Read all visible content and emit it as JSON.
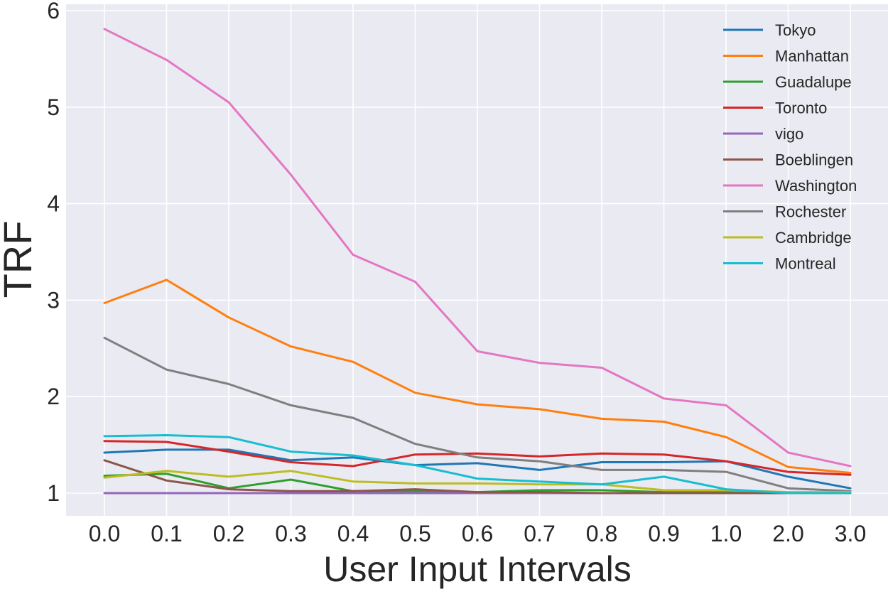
{
  "chart_data": {
    "type": "line",
    "title": "",
    "xlabel": "User Input Intervals",
    "ylabel": "TRF",
    "categories": [
      "0.0",
      "0.1",
      "0.2",
      "0.3",
      "0.4",
      "0.5",
      "0.6",
      "0.7",
      "0.8",
      "0.9",
      "1.0",
      "2.0",
      "3.0"
    ],
    "yticks": [
      "1",
      "2",
      "3",
      "4",
      "5",
      "6"
    ],
    "ylim": [
      0.75,
      6.05
    ],
    "grid": true,
    "legend_position": "top-right",
    "series": [
      {
        "name": "Tokyo",
        "color": "#1f77b4",
        "values": [
          1.42,
          1.45,
          1.45,
          1.34,
          1.37,
          1.29,
          1.31,
          1.24,
          1.32,
          1.32,
          1.33,
          1.17,
          1.05
        ]
      },
      {
        "name": "Manhattan",
        "color": "#ff7f0e",
        "values": [
          2.97,
          3.21,
          2.82,
          2.52,
          2.36,
          2.04,
          1.92,
          1.87,
          1.77,
          1.74,
          1.58,
          1.27,
          1.21
        ]
      },
      {
        "name": "Guadalupe",
        "color": "#2ca02c",
        "values": [
          1.18,
          1.2,
          1.05,
          1.14,
          1.02,
          1.02,
          1.01,
          1.03,
          1.03,
          1.01,
          1.01,
          1.0,
          1.0
        ]
      },
      {
        "name": "Toronto",
        "color": "#d62728",
        "values": [
          1.54,
          1.53,
          1.43,
          1.32,
          1.28,
          1.4,
          1.41,
          1.38,
          1.41,
          1.4,
          1.33,
          1.22,
          1.19
        ]
      },
      {
        "name": "vigo",
        "color": "#9467bd",
        "values": [
          1.0,
          1.0,
          1.0,
          1.0,
          1.0,
          1.0,
          1.0,
          1.0,
          1.0,
          1.0,
          1.0,
          1.0,
          1.0
        ]
      },
      {
        "name": "Boeblingen",
        "color": "#8c564b",
        "values": [
          1.34,
          1.13,
          1.04,
          1.02,
          1.02,
          1.04,
          1.01,
          1.01,
          1.0,
          1.0,
          1.0,
          1.0,
          1.0
        ]
      },
      {
        "name": "Washington",
        "color": "#e377c2",
        "values": [
          5.81,
          5.49,
          5.05,
          4.3,
          3.47,
          3.19,
          2.47,
          2.35,
          2.3,
          1.98,
          1.91,
          1.42,
          1.28
        ]
      },
      {
        "name": "Rochester",
        "color": "#7f7f7f",
        "values": [
          2.61,
          2.28,
          2.13,
          1.91,
          1.78,
          1.51,
          1.37,
          1.33,
          1.24,
          1.24,
          1.22,
          1.05,
          1.02
        ]
      },
      {
        "name": "Cambridge",
        "color": "#bcbd22",
        "values": [
          1.16,
          1.23,
          1.17,
          1.23,
          1.12,
          1.1,
          1.1,
          1.09,
          1.09,
          1.03,
          1.03,
          1.01,
          1.01
        ]
      },
      {
        "name": "Montreal",
        "color": "#17becf",
        "values": [
          1.59,
          1.6,
          1.58,
          1.43,
          1.39,
          1.29,
          1.15,
          1.12,
          1.09,
          1.17,
          1.04,
          1.0,
          1.0
        ]
      }
    ]
  }
}
